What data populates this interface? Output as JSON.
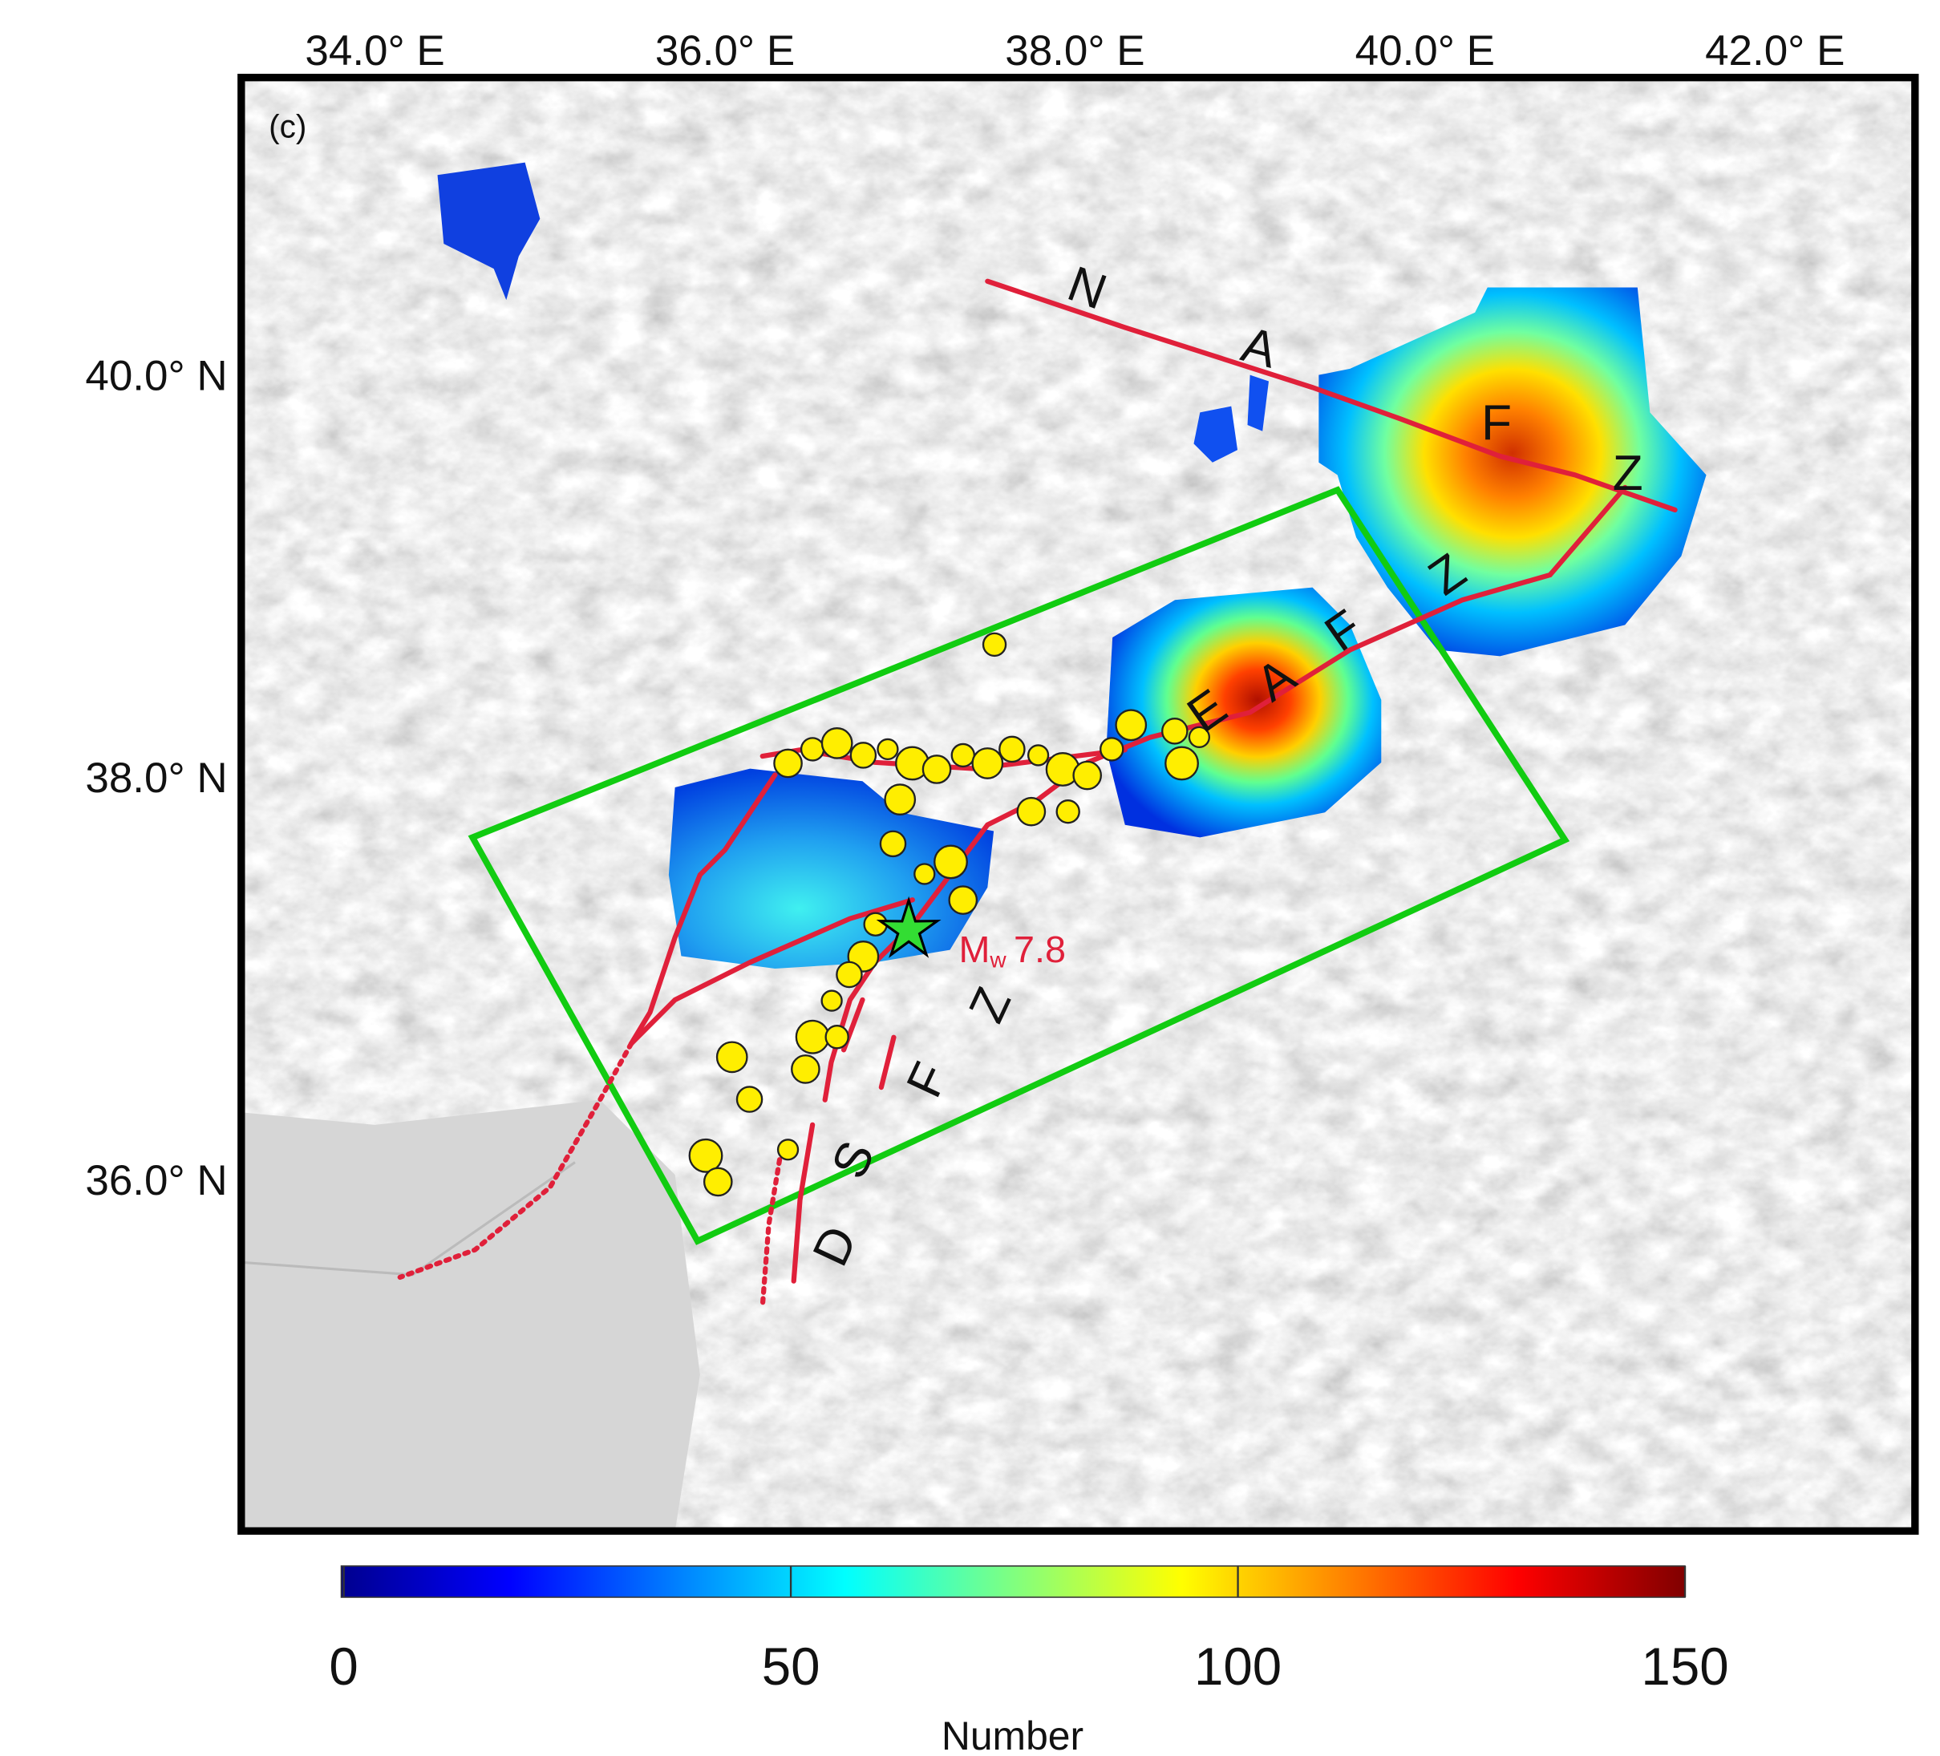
{
  "panel_label": "(c)",
  "axes": {
    "lon_ticks": [
      {
        "value": 34,
        "label": "34.0° E"
      },
      {
        "value": 36,
        "label": "36.0° E"
      },
      {
        "value": 38,
        "label": "38.0° E"
      },
      {
        "value": 40,
        "label": "40.0° E"
      },
      {
        "value": 42,
        "label": "42.0° E"
      }
    ],
    "lat_ticks": [
      {
        "value": 40,
        "label": "40.0° N"
      },
      {
        "value": 38,
        "label": "38.0° N"
      },
      {
        "value": 36,
        "label": "36.0° N"
      }
    ]
  },
  "colorbar": {
    "label": "Number",
    "ticks": [
      "0",
      "50",
      "100",
      "150"
    ],
    "range": [
      0,
      150
    ],
    "colormap": [
      "#00008f",
      "#0000ff",
      "#0080ff",
      "#00ffff",
      "#80ff80",
      "#ffff00",
      "#ff8000",
      "#ff0000",
      "#800000"
    ]
  },
  "fault_labels": {
    "nafz": [
      "N",
      "A",
      "F",
      "Z"
    ],
    "eafz": [
      "E",
      "A",
      "F",
      "Z"
    ],
    "dsfz": [
      "D",
      "S",
      "F",
      "Z"
    ]
  },
  "mainshock": {
    "label_m": "M",
    "label_sub": "w",
    "label_value": "7.8",
    "lon": 37.05,
    "lat": 37.24,
    "color": "#33dd33"
  },
  "colors": {
    "fault": "#e0203a",
    "box": "#11cc11",
    "aftershock": "#ffee00"
  },
  "aftershocks": [
    [
      36.36,
      38.07
    ],
    [
      36.5,
      38.14
    ],
    [
      36.64,
      38.17
    ],
    [
      36.79,
      38.11
    ],
    [
      36.93,
      38.14
    ],
    [
      37.07,
      38.07
    ],
    [
      37.21,
      38.04
    ],
    [
      37.36,
      38.11
    ],
    [
      37.5,
      38.07
    ],
    [
      37.64,
      38.14
    ],
    [
      37.79,
      38.11
    ],
    [
      37.93,
      38.04
    ],
    [
      38.07,
      38.01
    ],
    [
      38.21,
      38.14
    ],
    [
      38.32,
      38.26
    ],
    [
      38.57,
      38.23
    ],
    [
      38.71,
      38.2
    ],
    [
      38.61,
      38.07
    ],
    [
      37.75,
      37.83
    ],
    [
      37.96,
      37.83
    ],
    [
      37.0,
      37.89
    ],
    [
      36.96,
      37.67
    ],
    [
      37.14,
      37.52
    ],
    [
      37.29,
      37.58
    ],
    [
      37.36,
      37.39
    ],
    [
      36.86,
      37.27
    ],
    [
      36.79,
      37.11
    ],
    [
      36.71,
      37.02
    ],
    [
      36.61,
      36.89
    ],
    [
      36.5,
      36.71
    ],
    [
      36.46,
      36.55
    ],
    [
      36.64,
      36.71
    ],
    [
      36.04,
      36.61
    ],
    [
      36.14,
      36.4
    ],
    [
      36.36,
      36.15
    ],
    [
      35.89,
      36.12
    ],
    [
      35.96,
      35.99
    ],
    [
      37.54,
      38.66
    ]
  ]
}
